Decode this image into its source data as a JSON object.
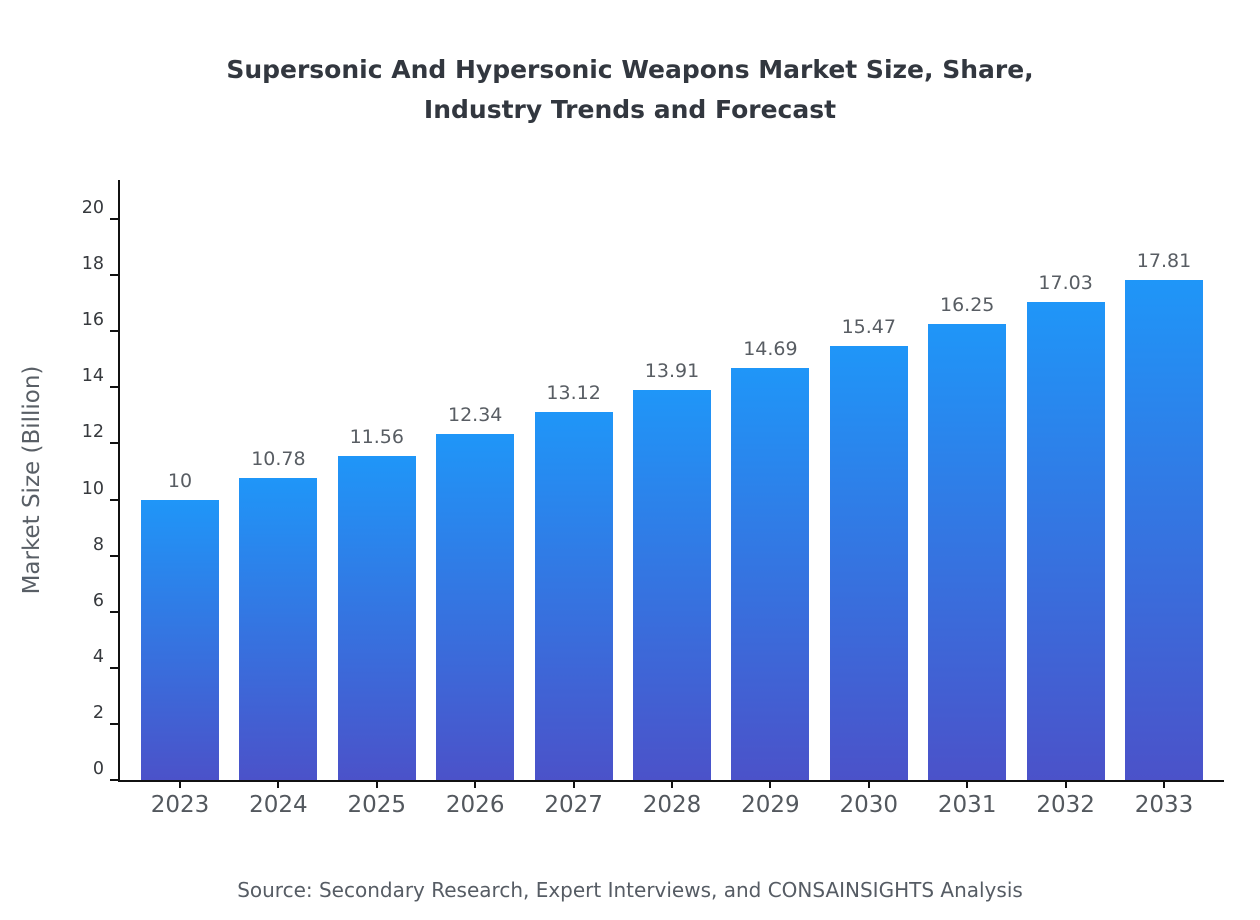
{
  "title": {
    "line1": "Supersonic And Hypersonic Weapons Market Size, Share,",
    "line2": "Industry Trends and Forecast"
  },
  "source": "Source: Secondary Research, Expert Interviews, and CONSAINSIGHTS Analysis",
  "chart_data": {
    "type": "bar",
    "title": "Supersonic And Hypersonic Weapons Market Size, Share, Industry Trends and Forecast",
    "categories": [
      "2023",
      "2024",
      "2025",
      "2026",
      "2027",
      "2028",
      "2029",
      "2030",
      "2031",
      "2032",
      "2033"
    ],
    "values": [
      10,
      10.78,
      11.56,
      12.34,
      13.12,
      13.91,
      14.69,
      15.47,
      16.25,
      17.03,
      17.81
    ],
    "data_labels": [
      "10",
      "10.78",
      "11.56",
      "12.34",
      "13.12",
      "13.91",
      "14.69",
      "15.47",
      "16.25",
      "17.03",
      "17.81"
    ],
    "xlabel": "",
    "ylabel": "Market Size (Billion)",
    "ylim": [
      0,
      21
    ],
    "yticks": [
      0,
      2,
      4,
      6,
      8,
      10,
      12,
      14,
      16,
      18,
      20
    ],
    "grid": false,
    "legend": false,
    "bar_color_top": "#1f96f8",
    "bar_color_bottom": "#4b52c9",
    "axis_color": "#111111"
  }
}
